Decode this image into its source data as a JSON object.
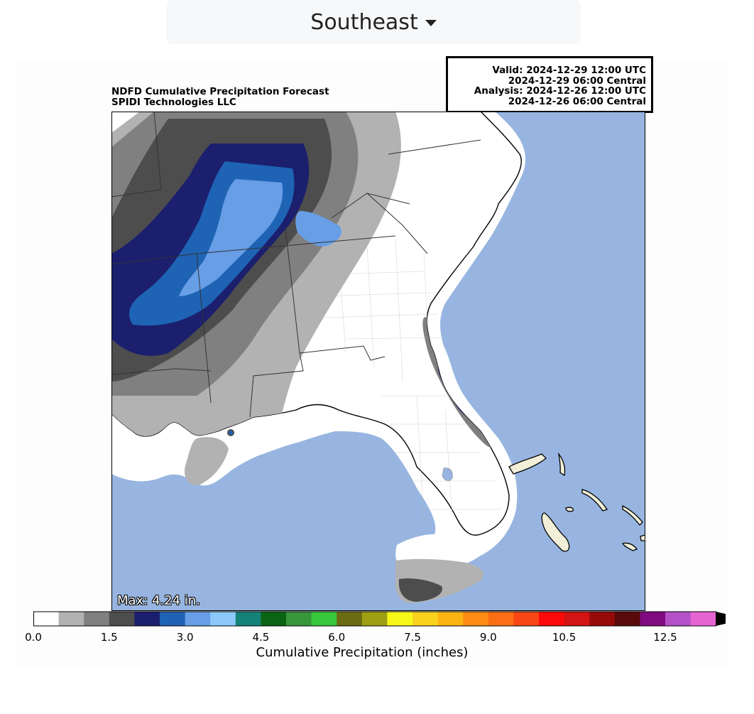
{
  "region_selector": {
    "label": "Southeast"
  },
  "map": {
    "title_line1": "NDFD Cumulative Precipitation Forecast",
    "title_line2": "SPIDI Technologies LLC",
    "valid_utc": "Valid: 2024-12-29 12:00 UTC",
    "valid_central": "2024-12-29 06:00 Central",
    "analysis_utc": "Analysis: 2024-12-26 12:00 UTC",
    "analysis_central": "2024-12-26 06:00 Central",
    "max_label": "Max: 4.24 in.",
    "colors": {
      "ocean": "#97b5e0",
      "land": "#ffffff",
      "island": "#f2efd9",
      "border": "#000000"
    }
  },
  "colorbar": {
    "title": "Cumulative Precipitation (inches)",
    "ticks": [
      "0.0",
      "1.5",
      "3.0",
      "4.5",
      "6.0",
      "7.5",
      "9.0",
      "10.5",
      "12.5"
    ],
    "colors": [
      "#ffffff",
      "#b2b2b2",
      "#808080",
      "#4d4d4d",
      "#1b1f6e",
      "#1f63b4",
      "#679ee6",
      "#8cc8fa",
      "#15827a",
      "#0a6414",
      "#37963a",
      "#38c83c",
      "#6b6b14",
      "#9f9f14",
      "#f8f818",
      "#fad21e",
      "#fcb414",
      "#fc8c14",
      "#fc6e14",
      "#f84614",
      "#fc0a0a",
      "#d21414",
      "#960a0a",
      "#5a0a0a",
      "#800a80",
      "#b450c8",
      "#e664d2"
    ]
  }
}
